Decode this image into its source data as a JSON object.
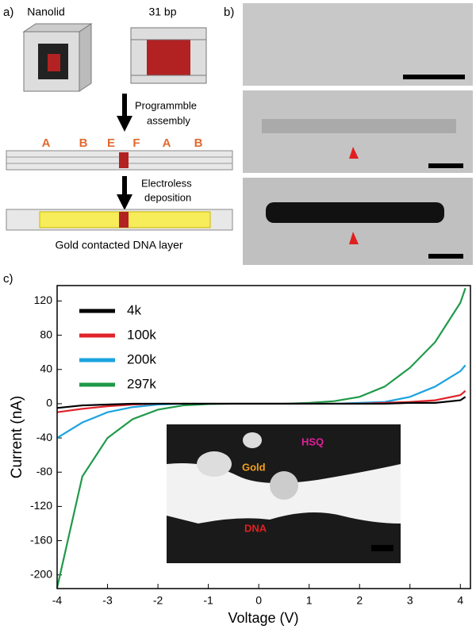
{
  "panel_a": {
    "label": "a)",
    "nanolid": "Nanolid",
    "bp": "31 bp",
    "step1": [
      "Programmble",
      "assembly"
    ],
    "letters": [
      "A",
      "B",
      "E",
      "F",
      "A",
      "B"
    ],
    "step2": [
      "Electroless",
      "deposition"
    ],
    "caption": "Gold contacted DNA layer"
  },
  "panel_b": {
    "label": "b)"
  },
  "panel_c": {
    "label": "c)",
    "inset_labels": {
      "gold": "Gold",
      "hsq": "HSQ",
      "dna": "DNA"
    }
  },
  "chart_data": {
    "type": "line",
    "x_label": "Voltage (V)",
    "y_label": "Current (nA)",
    "x": [
      -4,
      -3.5,
      -3,
      -2.5,
      -2,
      -1.5,
      -1,
      -0.5,
      0,
      0.5,
      1,
      1.5,
      2,
      2.5,
      3,
      3.5,
      4,
      4.1
    ],
    "series": [
      {
        "name": "4k",
        "color": "#000000",
        "values": [
          -5,
          -2,
          -1,
          0,
          0,
          0,
          0,
          0,
          0,
          0,
          0,
          0,
          0,
          0,
          1,
          1,
          4,
          8
        ]
      },
      {
        "name": "100k",
        "color": "#e0242b",
        "values": [
          -10,
          -6,
          -3,
          -1,
          0,
          0,
          0,
          0,
          0,
          0,
          0,
          0,
          0,
          1,
          2,
          4,
          10,
          15
        ]
      },
      {
        "name": "200k",
        "color": "#1ca3e0",
        "values": [
          -40,
          -22,
          -10,
          -4,
          -1,
          0,
          0,
          0,
          0,
          0,
          0,
          0,
          1,
          2,
          8,
          20,
          38,
          45
        ]
      },
      {
        "name": "297k",
        "color": "#1f9a4a",
        "values": [
          -215,
          -85,
          -40,
          -18,
          -7,
          -2,
          -0.5,
          0,
          0,
          0,
          1,
          3,
          8,
          20,
          42,
          72,
          118,
          135
        ]
      }
    ],
    "xlim": [
      -4,
      4.2
    ],
    "ylim": [
      -216,
      138
    ],
    "xticks": [
      -4,
      -3,
      -2,
      -1,
      0,
      1,
      2,
      3,
      4
    ],
    "yticks": [
      -200,
      -160,
      -120,
      -80,
      -40,
      0,
      40,
      80,
      120
    ]
  }
}
